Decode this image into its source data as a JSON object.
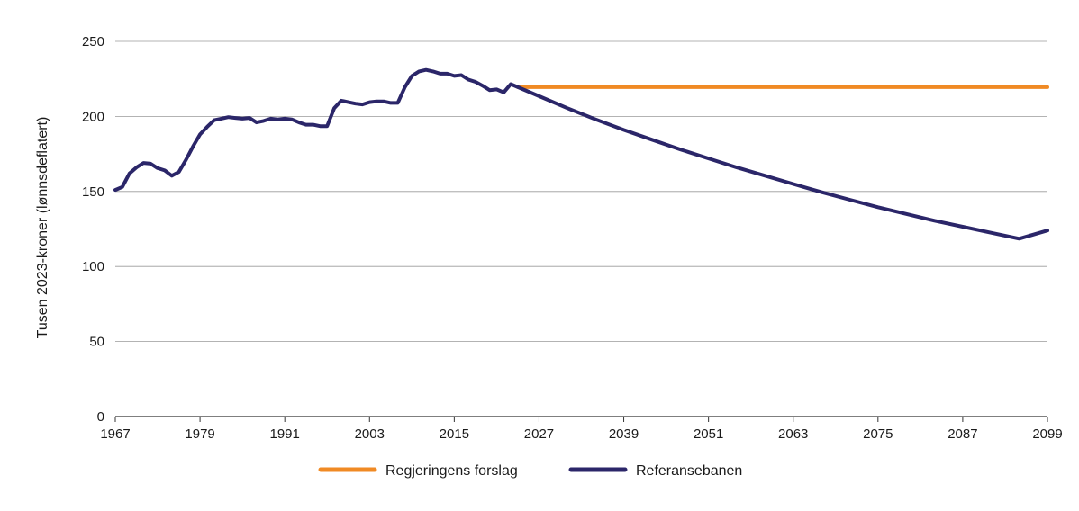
{
  "chart_data": {
    "type": "line",
    "title": "",
    "xlabel": "",
    "ylabel": "Tusen  2023-kroner (lønnsdeflatert)",
    "xlim": [
      1967,
      2099
    ],
    "ylim": [
      0,
      250
    ],
    "x_ticks": [
      "1967",
      "1979",
      "1991",
      "2003",
      "2015",
      "2027",
      "2039",
      "2051",
      "2063",
      "2075",
      "2087",
      "2099"
    ],
    "y_ticks": [
      "0",
      "50",
      "100",
      "150",
      "200",
      "250"
    ],
    "grid": "horizontal",
    "legend_position": "bottom",
    "series": [
      {
        "name": "Regjeringens forslag",
        "color": "#f08a24",
        "x": [
          2024,
          2099
        ],
        "y": [
          219.5,
          219.5
        ]
      },
      {
        "name": "Referansebanen",
        "color": "#2b2669",
        "x": [
          1967,
          1968,
          1969,
          1970,
          1971,
          1972,
          1973,
          1974,
          1975,
          1976,
          1977,
          1978,
          1979,
          1980,
          1981,
          1982,
          1983,
          1984,
          1985,
          1986,
          1987,
          1988,
          1989,
          1990,
          1991,
          1992,
          1993,
          1994,
          1995,
          1996,
          1997,
          1998,
          1999,
          2000,
          2001,
          2002,
          2003,
          2004,
          2005,
          2006,
          2007,
          2008,
          2009,
          2010,
          2011,
          2012,
          2013,
          2014,
          2015,
          2016,
          2017,
          2018,
          2019,
          2020,
          2021,
          2022,
          2023,
          2027,
          2031,
          2035,
          2039,
          2043,
          2047,
          2051,
          2055,
          2059,
          2063,
          2067,
          2071,
          2075,
          2079,
          2083,
          2087,
          2091,
          2095,
          2099
        ],
        "y": [
          151,
          153,
          162,
          166,
          169,
          168.5,
          165.5,
          164,
          160.5,
          163,
          171,
          180,
          188,
          193,
          197.5,
          198.5,
          199.5,
          199,
          198.5,
          199,
          196,
          197,
          198.5,
          198,
          198.5,
          198,
          196,
          194.5,
          194.5,
          193.5,
          193.5,
          205.5,
          210.5,
          209.5,
          208.5,
          208,
          209.5,
          210,
          210,
          209,
          209,
          219.5,
          227,
          230,
          231,
          230,
          228.5,
          228.5,
          227,
          227.5,
          224.5,
          223,
          220.5,
          217.5,
          218,
          216,
          221.5,
          213.5,
          205.5,
          198,
          191,
          184.5,
          178,
          172,
          166,
          160.5,
          155,
          149.5,
          144.5,
          139.5,
          135,
          130.5,
          126.5,
          122.5,
          118.5,
          124
        ]
      }
    ]
  }
}
